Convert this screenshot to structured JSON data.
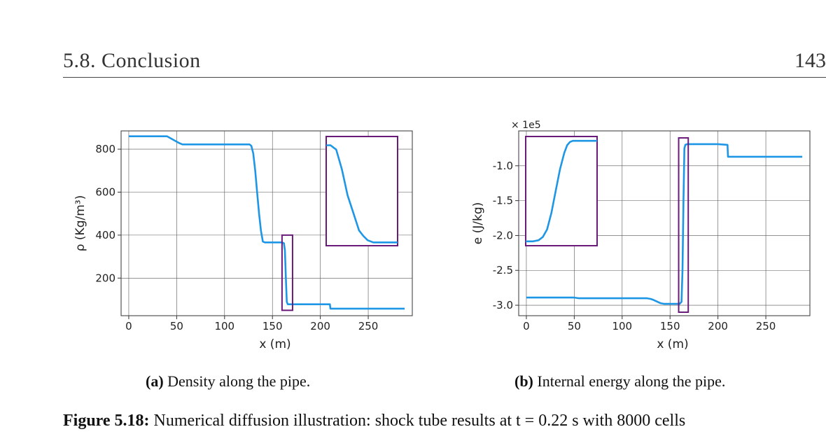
{
  "header": {
    "section": "5.8.  Conclusion",
    "page": "143"
  },
  "chart_data": [
    {
      "type": "line",
      "xlabel": "x (m)",
      "ylabel": "ρ (Kg/m³)",
      "xlim": [
        -8,
        296
      ],
      "ylim": [
        25,
        885
      ],
      "xticks": [
        0,
        50,
        100,
        150,
        200,
        250
      ],
      "xtick_labels": [
        "0",
        "50",
        "100",
        "150",
        "200",
        "250"
      ],
      "yticks": [
        200,
        400,
        600,
        800
      ],
      "ytick_labels": [
        "200",
        "400",
        "600",
        "800"
      ],
      "grid": true,
      "color": "#1e96e6",
      "series": [
        {
          "x": [
            0,
            40,
            52,
            56,
            60,
            126,
            128,
            130,
            132,
            134,
            136,
            138,
            140,
            142,
            144,
            160,
            162,
            163,
            164,
            165,
            166,
            168,
            210,
            210.5,
            288
          ],
          "values": [
            860,
            860,
            830,
            822,
            822,
            822,
            815,
            780,
            700,
            600,
            500,
            420,
            370,
            366,
            366,
            366,
            362,
            330,
            200,
            90,
            78,
            78,
            78,
            58,
            58
          ]
        }
      ],
      "zoom_box": {
        "x": [
          160,
          171
        ],
        "y": [
          50,
          400
        ]
      },
      "inset": {
        "x": [
          0,
          100
        ],
        "y": [
          0,
          100
        ],
        "series": [
          {
            "x": [
              0,
              6,
              14,
              22,
              30,
              38,
              46,
              52,
              58,
              66,
              76,
              86,
              100
            ],
            "values": [
              92,
              92,
              88,
              70,
              46,
              30,
              14,
              9,
              5,
              3,
              3,
              3,
              3
            ]
          }
        ]
      }
    },
    {
      "type": "line",
      "xlabel": "x (m)",
      "ylabel": "e (J/kg)",
      "offset_label": "× 1e5",
      "xlim": [
        -8,
        296
      ],
      "ylim": [
        -3.15,
        -0.5
      ],
      "xticks": [
        0,
        50,
        100,
        150,
        200,
        250
      ],
      "xtick_labels": [
        "0",
        "50",
        "100",
        "150",
        "200",
        "250"
      ],
      "yticks": [
        -1.0,
        -1.5,
        -2.0,
        -2.5,
        -3.0
      ],
      "ytick_labels": [
        "-1.0",
        "-1.5",
        "-2.0",
        "-2.5",
        "-3.0"
      ],
      "grid": true,
      "color": "#1e96e6",
      "series": [
        {
          "x": [
            0,
            50,
            55,
            100,
            126,
            130,
            132,
            140,
            144,
            160,
            162,
            163,
            164,
            165,
            166,
            168,
            200,
            210,
            210.5,
            288
          ],
          "values": [
            -2.89,
            -2.89,
            -2.9,
            -2.9,
            -2.9,
            -2.91,
            -2.92,
            -2.97,
            -2.98,
            -2.98,
            -2.95,
            -2.5,
            -1.5,
            -0.75,
            -0.7,
            -0.69,
            -0.69,
            -0.7,
            -0.87,
            -0.87
          ]
        }
      ],
      "zoom_box": {
        "x": [
          159,
          169
        ],
        "y": [
          -3.1,
          -0.6
        ]
      },
      "inset": {
        "x": [
          0,
          100
        ],
        "y": [
          0,
          100
        ],
        "series": [
          {
            "x": [
              0,
              10,
              18,
              24,
              30,
              36,
              42,
              48,
              54,
              58,
              62,
              66,
              74,
              86,
              100
            ],
            "values": [
              4,
              4,
              5,
              8,
              15,
              30,
              50,
              70,
              85,
              92,
              95,
              96,
              96,
              96,
              96
            ]
          }
        ]
      }
    }
  ],
  "captions": {
    "a_label": "(a)",
    "a_text": " Density along the pipe.",
    "b_label": "(b)",
    "b_text": " Internal energy along the pipe.",
    "fig_label": "Figure 5.18:",
    "fig_text": " Numerical diffusion illustration: shock tube results at t = 0.22 s with 8000 cells"
  }
}
